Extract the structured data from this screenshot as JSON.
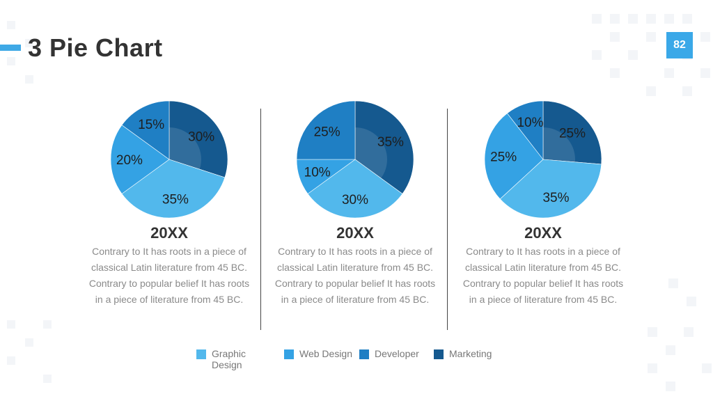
{
  "slide": {
    "title": "3 Pie Chart",
    "page_number": "82"
  },
  "colors": {
    "graphic_design": "#52b8ec",
    "web_design": "#34a2e4",
    "developer": "#1f7fc4",
    "marketing": "#15598f",
    "accent": "#3fa9e6"
  },
  "legend": [
    {
      "label": "Graphic Design",
      "color": "#52b8ec"
    },
    {
      "label": "Web Design",
      "color": "#34a2e4"
    },
    {
      "label": "Developer",
      "color": "#1f7fc4"
    },
    {
      "label": "Marketing",
      "color": "#15598f"
    }
  ],
  "columns": [
    {
      "year": "20XX",
      "description": "Contrary to It has roots in a piece of classical Latin literature from 45 BC. Contrary to popular belief It has roots in a piece of literature from 45 BC."
    },
    {
      "year": "20XX",
      "description": "Contrary to It has roots in a piece of classical Latin literature from 45 BC. Contrary to popular belief It has roots in a piece of literature from 45 BC."
    },
    {
      "year": "20XX",
      "description": "Contrary to It has roots in a piece of classical Latin literature from 45 BC. Contrary to popular belief It has roots in a piece of literature from 45 BC."
    }
  ],
  "chart_data": [
    {
      "type": "pie",
      "title": "20XX",
      "categories": [
        "Marketing",
        "Graphic Design",
        "Web Design",
        "Developer"
      ],
      "values": [
        30,
        35,
        20,
        15
      ],
      "labels": [
        "30%",
        "35%",
        "20%",
        "15%"
      ],
      "colors": [
        "#15598f",
        "#52b8ec",
        "#34a2e4",
        "#1f7fc4"
      ]
    },
    {
      "type": "pie",
      "title": "20XX",
      "categories": [
        "Marketing",
        "Graphic Design",
        "Web Design",
        "Developer"
      ],
      "values": [
        35,
        30,
        10,
        25
      ],
      "labels": [
        "35%",
        "30%",
        "10%",
        "25%"
      ],
      "colors": [
        "#15598f",
        "#52b8ec",
        "#34a2e4",
        "#1f7fc4"
      ]
    },
    {
      "type": "pie",
      "title": "20XX",
      "categories": [
        "Marketing",
        "Graphic Design",
        "Web Design",
        "Developer"
      ],
      "values": [
        25,
        35,
        25,
        10
      ],
      "labels": [
        "25%",
        "35%",
        "25%",
        "10%"
      ],
      "colors": [
        "#15598f",
        "#52b8ec",
        "#34a2e4",
        "#1f7fc4"
      ]
    }
  ]
}
